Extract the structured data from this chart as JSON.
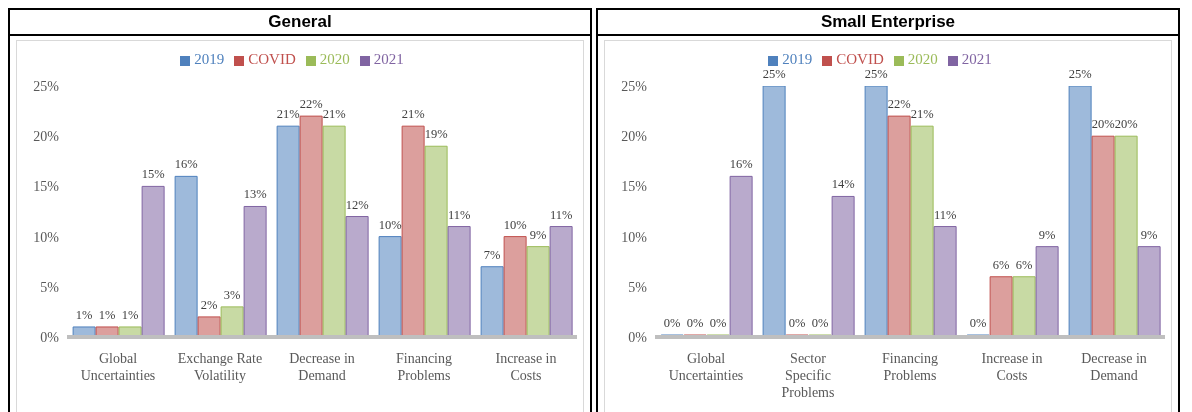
{
  "chart_data": [
    {
      "type": "bar",
      "title": "General",
      "categories": [
        "Global Uncertainties",
        "Exchange Rate Volatility",
        "Decrease in Demand",
        "Financing Problems",
        "Increase in Costs"
      ],
      "series": [
        {
          "name": "2019",
          "color": "#4f81bd",
          "values": [
            1,
            16,
            21,
            10,
            7
          ],
          "value_labels": [
            "1%",
            "16%",
            "21%",
            "10%",
            "7%"
          ]
        },
        {
          "name": "COVID",
          "color": "#c0504d",
          "values": [
            1,
            2,
            22,
            21,
            10
          ],
          "value_labels": [
            "1%",
            "2%",
            "22%",
            "21%",
            "10%"
          ]
        },
        {
          "name": "2020",
          "color": "#9bbb59",
          "values": [
            1,
            3,
            21,
            19,
            9
          ],
          "value_labels": [
            "1%",
            "3%",
            "21%",
            "19%",
            "9%"
          ]
        },
        {
          "name": "2021",
          "color": "#8064a2",
          "values": [
            15,
            13,
            12,
            11,
            11
          ],
          "value_labels": [
            "15%",
            "13%",
            "12%",
            "11%",
            "11%"
          ]
        }
      ],
      "ylim": [
        0,
        25
      ],
      "yticks": [
        {
          "value": 0,
          "label": "0%"
        },
        {
          "value": 5,
          "label": "5%"
        },
        {
          "value": 10,
          "label": "10%"
        },
        {
          "value": 15,
          "label": "15%"
        },
        {
          "value": 20,
          "label": "20%"
        },
        {
          "value": 25,
          "label": "25%"
        }
      ],
      "grid": false,
      "legend": "top"
    },
    {
      "type": "bar",
      "title": "Small Enterprise",
      "categories": [
        "Global Uncertainties",
        "Sector Specific Problems",
        "Financing Problems",
        "Increase in Costs",
        "Decrease in Demand"
      ],
      "series": [
        {
          "name": "2019",
          "color": "#4f81bd",
          "values": [
            0,
            25,
            25,
            0,
            25
          ],
          "value_labels": [
            "0%",
            "25%",
            "25%",
            "0%",
            "25%"
          ]
        },
        {
          "name": "COVID",
          "color": "#c0504d",
          "values": [
            0,
            0,
            22,
            6,
            20
          ],
          "value_labels": [
            "0%",
            "0%",
            "22%",
            "6%",
            "20%"
          ]
        },
        {
          "name": "2020",
          "color": "#9bbb59",
          "values": [
            0,
            0,
            21,
            6,
            20
          ],
          "value_labels": [
            "0%",
            "0%",
            "21%",
            "6%",
            "20%"
          ]
        },
        {
          "name": "2021",
          "color": "#8064a2",
          "values": [
            16,
            14,
            11,
            9,
            9
          ],
          "value_labels": [
            "16%",
            "14%",
            "11%",
            "9%",
            "9%"
          ]
        }
      ],
      "ylim": [
        0,
        25
      ],
      "yticks": [
        {
          "value": 0,
          "label": "0%"
        },
        {
          "value": 5,
          "label": "5%"
        },
        {
          "value": 10,
          "label": "10%"
        },
        {
          "value": 15,
          "label": "15%"
        },
        {
          "value": 20,
          "label": "20%"
        },
        {
          "value": 25,
          "label": "25%"
        }
      ],
      "grid": false,
      "legend": "top"
    }
  ]
}
